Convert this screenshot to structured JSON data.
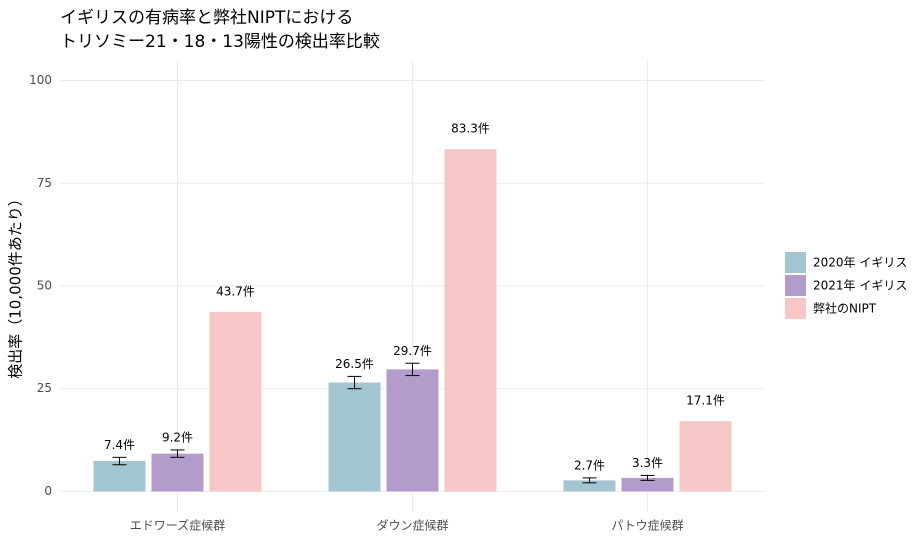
{
  "chart_data": {
    "type": "bar",
    "title": [
      "イギリスの有病率と弊社NIPTにおける",
      "トリソミー21・18・13陽性の検出率比較"
    ],
    "y_label": "検出率（10,000件あたり）",
    "categories": [
      "エドワーズ症候群",
      "ダウン症候群",
      "パトウ症候群"
    ],
    "series": [
      {
        "name": "2020年 イギリス",
        "color": "#a3c4d1",
        "values": [
          7.4,
          26.5,
          2.7
        ],
        "errors": [
          0.9,
          1.5,
          0.6
        ],
        "value_labels": [
          "7.4件",
          "26.5件",
          "2.7件"
        ]
      },
      {
        "name": "2021年 イギリス",
        "color": "#b39ccb",
        "values": [
          9.2,
          29.7,
          3.3
        ],
        "errors": [
          0.9,
          1.5,
          0.6
        ],
        "value_labels": [
          "9.2件",
          "29.7件",
          "3.3件"
        ]
      },
      {
        "name": "弊社のNIPT",
        "color": "#f7c6c6",
        "values": [
          43.7,
          83.3,
          17.1
        ],
        "value_labels": [
          "43.7件",
          "83.3件",
          "17.1件"
        ]
      }
    ],
    "ylim": [
      -5,
      105
    ],
    "yticks": [
      0,
      25,
      50,
      75,
      100
    ],
    "grid": true,
    "legend": "right"
  }
}
